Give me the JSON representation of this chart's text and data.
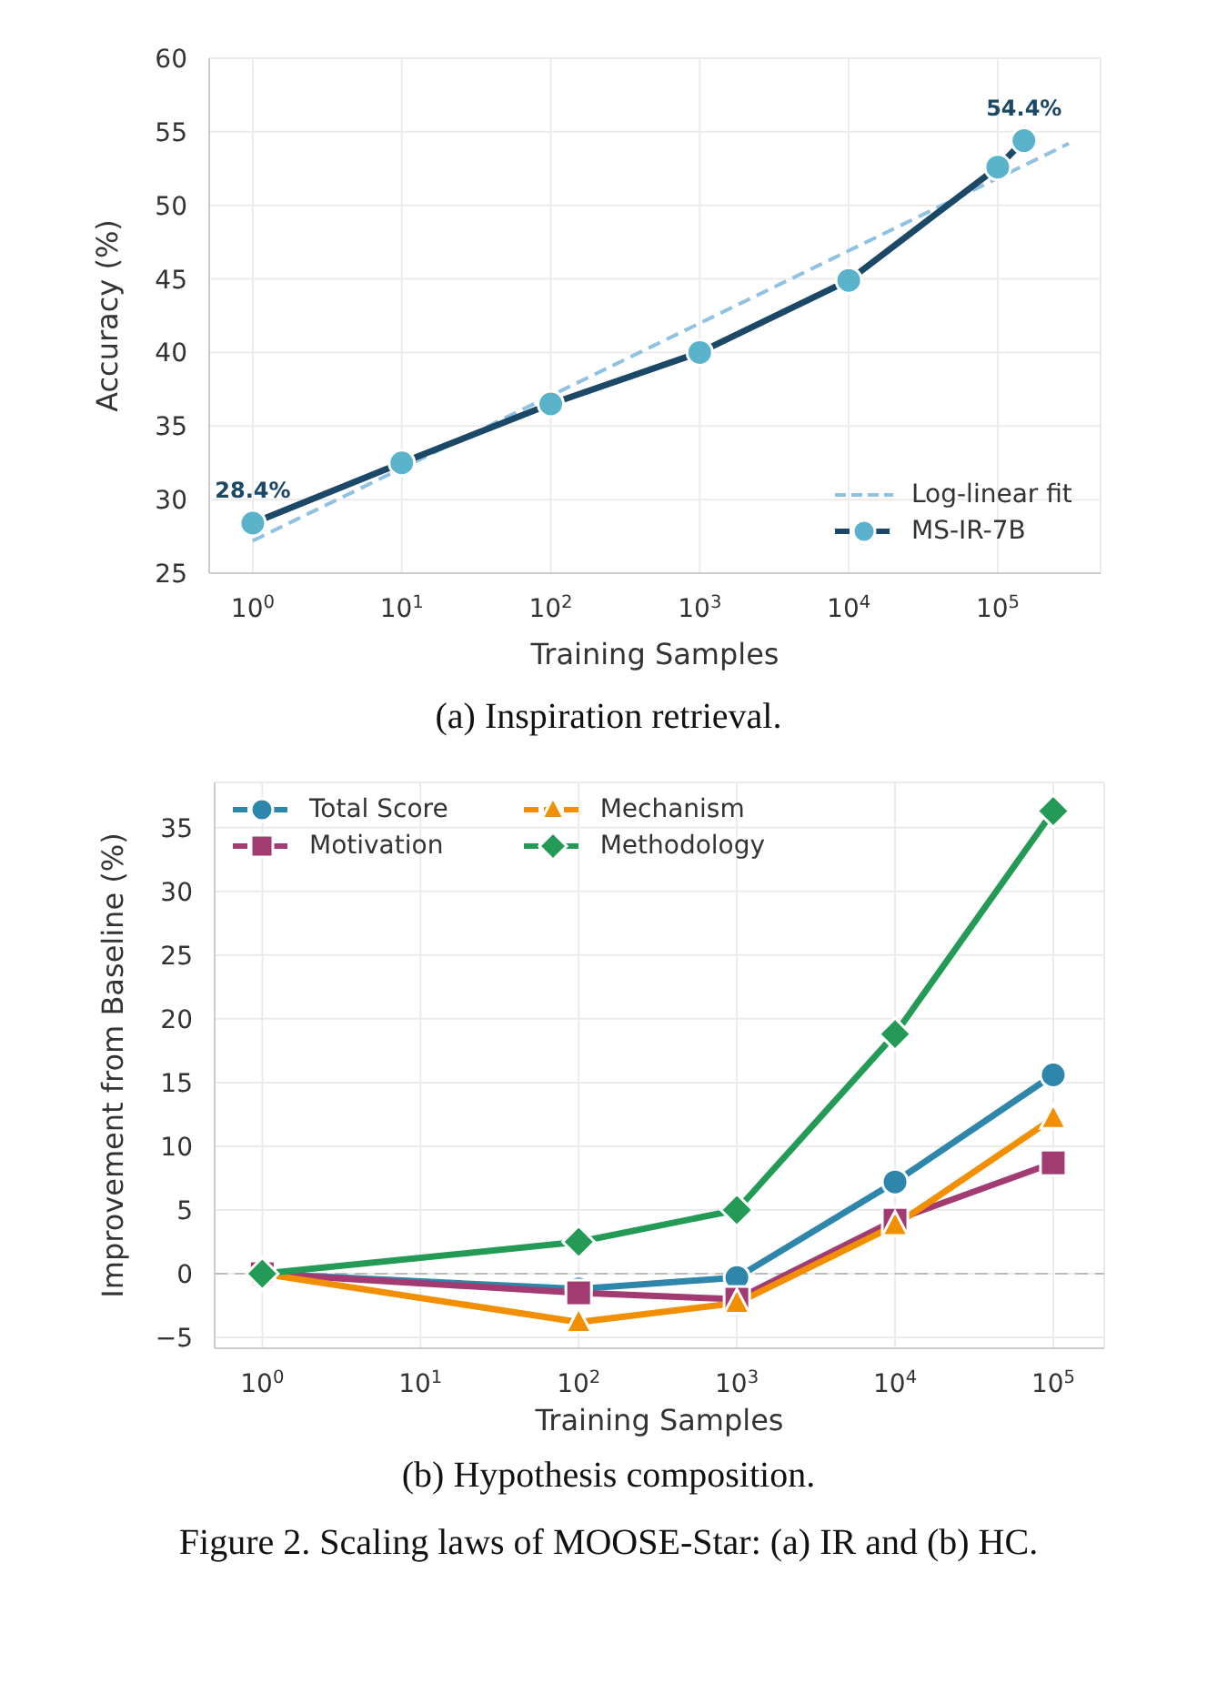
{
  "chart_data": [
    {
      "type": "line",
      "xlabel": "Training Samples",
      "ylabel": "Accuracy (%)",
      "log": "x",
      "grid": true,
      "legend": "bottom right",
      "line_style": "solid",
      "marker": "circle",
      "xlim": [
        0.51,
        490000
      ],
      "xticks": [
        {
          "value": 1,
          "label": "10$^{0}$"
        },
        {
          "value": 10,
          "label": "10$^{1}$"
        },
        {
          "value": 100,
          "label": "10$^{2}$"
        },
        {
          "value": 1000,
          "label": "10$^{3}$"
        },
        {
          "value": 10000,
          "label": "10$^{4}$"
        },
        {
          "value": 100000,
          "label": "10$^{5}$"
        }
      ],
      "ylim": [
        25,
        60
      ],
      "yticks": [
        25,
        30,
        35,
        40,
        45,
        50,
        55,
        60
      ],
      "series": [
        {
          "name": "Log-linear fit",
          "type": "line",
          "color": "#8fc1e3",
          "line_style": "dashed",
          "marker": "none",
          "x": [
            1,
            300000
          ],
          "values": [
            27.2,
            54.2
          ]
        },
        {
          "name": "MS-IR-7B",
          "type": "line",
          "color": "#1b4866",
          "colors": [
            "#5ab3cb",
            "#5ab3cb",
            "#5ab3cb",
            "#5ab3cb",
            "#5ab3cb",
            "#5ab3cb",
            "#5ab3cb"
          ],
          "x": [
            1,
            10,
            100,
            1000,
            10000,
            100000,
            150000
          ],
          "values": [
            28.4,
            32.5,
            36.5,
            40.0,
            44.9,
            52.6,
            54.4
          ],
          "value_labels": [
            "28.4%",
            null,
            null,
            null,
            null,
            null,
            "54.4%"
          ]
        }
      ],
      "annotations": [
        "(a) Inspiration retrieval."
      ]
    },
    {
      "type": "line",
      "xlabel": "Training Samples",
      "ylabel": "Improvement from Baseline (%)",
      "log": "x",
      "grid": true,
      "legend": "top left",
      "line_style": "solid",
      "x": [
        1,
        100,
        1000,
        10000,
        100000
      ],
      "xlim": [
        0.5,
        210000
      ],
      "xticks": [
        {
          "value": 1,
          "label": "10$^{0}$"
        },
        {
          "value": 10,
          "label": "10$^{1}$"
        },
        {
          "value": 100,
          "label": "10$^{2}$"
        },
        {
          "value": 1000,
          "label": "10$^{3}$"
        },
        {
          "value": 10000,
          "label": "10$^{4}$"
        },
        {
          "value": 100000,
          "label": "10$^{5}$"
        }
      ],
      "ylim": [
        -5.85,
        38.55
      ],
      "yticks": [
        -5,
        0,
        5,
        10,
        15,
        20,
        25,
        30,
        35
      ],
      "series": [
        {
          "name": "Total Score",
          "color": "#2e86ab",
          "marker": "circle",
          "values": [
            0,
            -1.2,
            -0.3,
            7.2,
            15.6
          ]
        },
        {
          "name": "Motivation",
          "color": "#a23b72",
          "marker": "square",
          "values": [
            0,
            -1.5,
            -2.0,
            4.2,
            8.7
          ]
        },
        {
          "name": "Mechanism",
          "color": "#f18f01",
          "marker": "triangle",
          "values": [
            0,
            -3.8,
            -2.3,
            3.8,
            12.2
          ]
        },
        {
          "name": "Methodology",
          "color": "#239b56",
          "marker": "diamond",
          "values": [
            0,
            2.5,
            5.0,
            18.8,
            36.3
          ]
        }
      ],
      "ref_lines": [
        {
          "axis": "y",
          "value": 0,
          "color": "#bbbbbb",
          "line_style": "dashed"
        }
      ],
      "annotations": [
        "(b) Hypothesis composition.",
        "Figure 2. Scaling laws of MOOSE-Star: (a) IR and (b) HC."
      ]
    }
  ]
}
